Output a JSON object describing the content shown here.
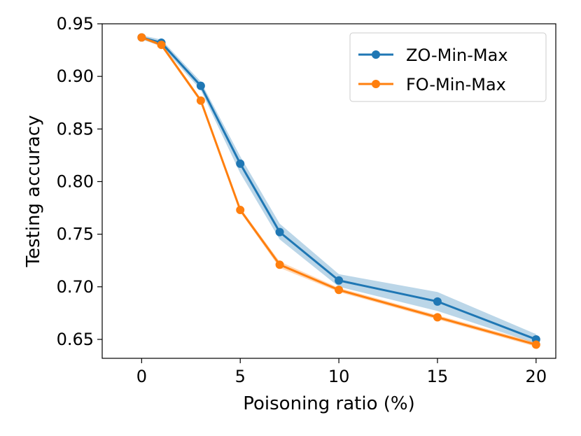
{
  "chart_data": {
    "type": "line",
    "title": "",
    "xlabel": "Poisoning ratio (%)",
    "ylabel": "Testing accuracy",
    "xlim": [
      -2,
      21
    ],
    "ylim": [
      0.632,
      0.95
    ],
    "xticks": [
      0,
      5,
      10,
      15,
      20
    ],
    "yticks": [
      0.65,
      0.7,
      0.75,
      0.8,
      0.85,
      0.9,
      0.95
    ],
    "xtick_labels": [
      "0",
      "5",
      "10",
      "15",
      "20"
    ],
    "ytick_labels": [
      "0.65",
      "0.70",
      "0.75",
      "0.80",
      "0.85",
      "0.90",
      "0.95"
    ],
    "x": [
      0,
      1,
      3,
      5,
      7,
      10,
      15,
      20
    ],
    "grid": false,
    "legend_position": "top-right",
    "series": [
      {
        "name": "ZO-Min-Max",
        "color": "#1f77b4",
        "band_color": "#1f77b4",
        "values": [
          0.937,
          0.932,
          0.891,
          0.817,
          0.752,
          0.706,
          0.686,
          0.65
        ],
        "lower": [
          0.935,
          0.929,
          0.887,
          0.808,
          0.745,
          0.7,
          0.677,
          0.646
        ],
        "upper": [
          0.939,
          0.935,
          0.895,
          0.824,
          0.76,
          0.712,
          0.695,
          0.655
        ]
      },
      {
        "name": "FO-Min-Max",
        "color": "#ff7f0e",
        "band_color": "#ff7f0e",
        "values": [
          0.937,
          0.93,
          0.877,
          0.773,
          0.721,
          0.697,
          0.671,
          0.645
        ],
        "lower": [
          0.936,
          0.928,
          0.875,
          0.771,
          0.718,
          0.695,
          0.669,
          0.643
        ],
        "upper": [
          0.938,
          0.932,
          0.879,
          0.775,
          0.724,
          0.699,
          0.673,
          0.647
        ]
      }
    ]
  }
}
